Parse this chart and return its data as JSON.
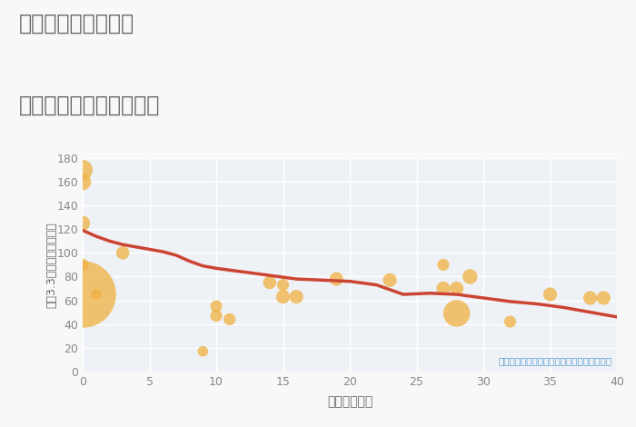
{
  "title_line1": "兵庫県宝塚市切畑の",
  "title_line2": "築年数別中古戸建て価格",
  "xlabel": "築年数（年）",
  "ylabel": "坪（3.3㎡）単価（万円）",
  "annotation": "円の大きさは、取引のあった物件面積を示す",
  "xlim": [
    0,
    40
  ],
  "ylim": [
    0,
    180
  ],
  "xticks": [
    0,
    5,
    10,
    15,
    20,
    25,
    30,
    35,
    40
  ],
  "yticks": [
    0,
    20,
    40,
    60,
    80,
    100,
    120,
    140,
    160,
    180
  ],
  "scatter_x": [
    0,
    0,
    0,
    0,
    0,
    1,
    3,
    9,
    10,
    10,
    11,
    14,
    15,
    15,
    16,
    19,
    23,
    27,
    27,
    28,
    28,
    29,
    32,
    35,
    38,
    39
  ],
  "scatter_y": [
    170,
    160,
    125,
    90,
    65,
    65,
    100,
    17,
    55,
    47,
    44,
    75,
    73,
    63,
    63,
    78,
    77,
    90,
    70,
    49,
    70,
    80,
    42,
    65,
    62,
    62
  ],
  "scatter_size": [
    250,
    180,
    140,
    90,
    2800,
    70,
    110,
    70,
    90,
    90,
    90,
    110,
    90,
    120,
    120,
    120,
    120,
    90,
    120,
    450,
    120,
    140,
    90,
    120,
    120,
    120
  ],
  "scatter_color": "#f0b040",
  "scatter_alpha": 0.75,
  "line_x": [
    0,
    1,
    2,
    3,
    4,
    5,
    6,
    7,
    8,
    9,
    10,
    12,
    14,
    16,
    18,
    20,
    22,
    24,
    26,
    28,
    30,
    32,
    34,
    36,
    38,
    40
  ],
  "line_y": [
    119,
    114,
    110,
    107,
    105,
    103,
    101,
    98,
    93,
    89,
    87,
    84,
    81,
    78,
    77,
    76,
    73,
    65,
    66,
    65,
    62,
    59,
    57,
    54,
    50,
    46
  ],
  "line_color": "#cc4433",
  "line_width": 2.5,
  "bg_color": "#f8f8f8",
  "plot_bg_color": "#eef2f7",
  "grid_color": "#ffffff",
  "title_color": "#666666",
  "label_color": "#666666",
  "tick_color": "#888888",
  "annotation_color": "#5599cc"
}
